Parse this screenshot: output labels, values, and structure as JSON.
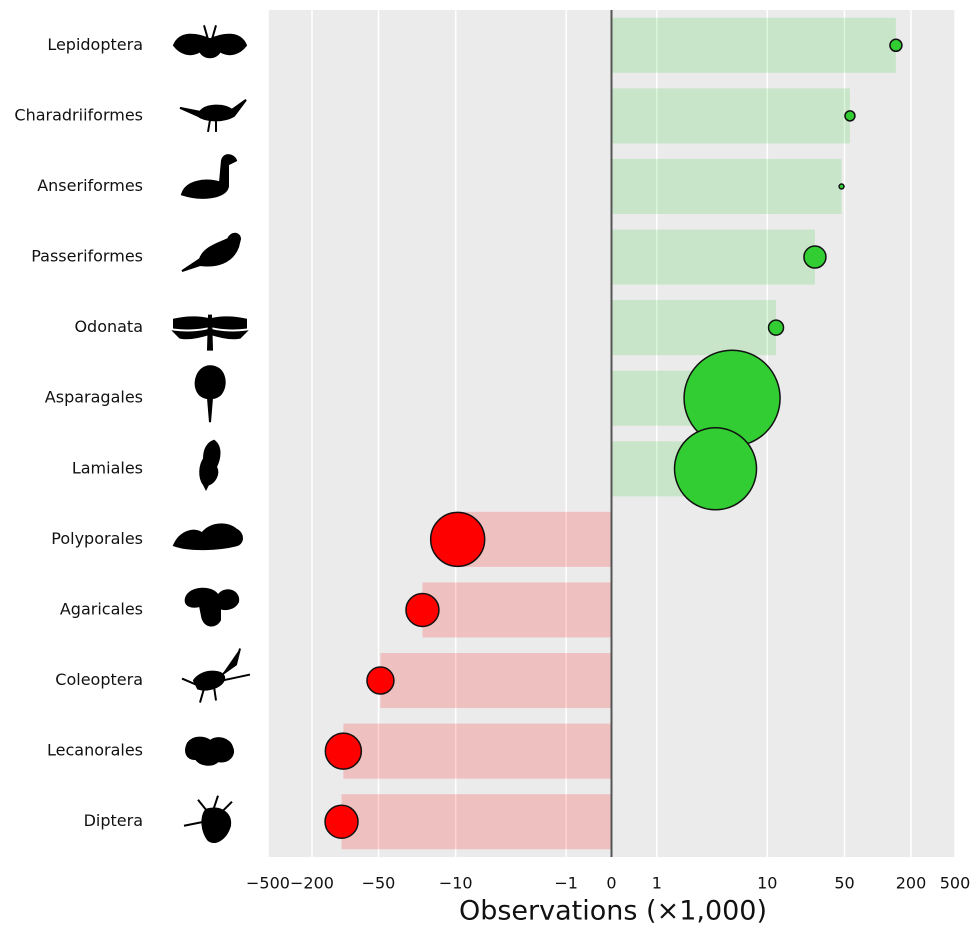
{
  "chart_data": {
    "type": "bubble-bar",
    "xlabel": "Observations (×1,000)",
    "xscale": "symlog",
    "categories": [
      "Lepidoptera",
      "Charadriiformes",
      "Anseriformes",
      "Passeriformes",
      "Odonata",
      "Asparagales",
      "Lamiales",
      "Polyporales",
      "Agaricales",
      "Coleoptera",
      "Lecanorales",
      "Diptera"
    ],
    "values": [
      146,
      56,
      47,
      27,
      12,
      4.8,
      3.4,
      -9.6,
      -20,
      -48,
      -104,
      -108
    ],
    "sizes": [
      36,
      25,
      6,
      121,
      56,
      2304,
      1681,
      729,
      272,
      182,
      324,
      272
    ],
    "colors": {
      "positive": "#32cd32",
      "negative": "#ff0000"
    },
    "xlim": [
      -500,
      500
    ],
    "xticks": [
      {
        "value": -500,
        "label": "−500"
      },
      {
        "value": -200,
        "label": "−200"
      },
      {
        "value": -50,
        "label": "−50"
      },
      {
        "value": -10,
        "label": "−10"
      },
      {
        "value": -1,
        "label": "−1"
      },
      0,
      1,
      10,
      50,
      200,
      500
    ],
    "grid": true
  }
}
